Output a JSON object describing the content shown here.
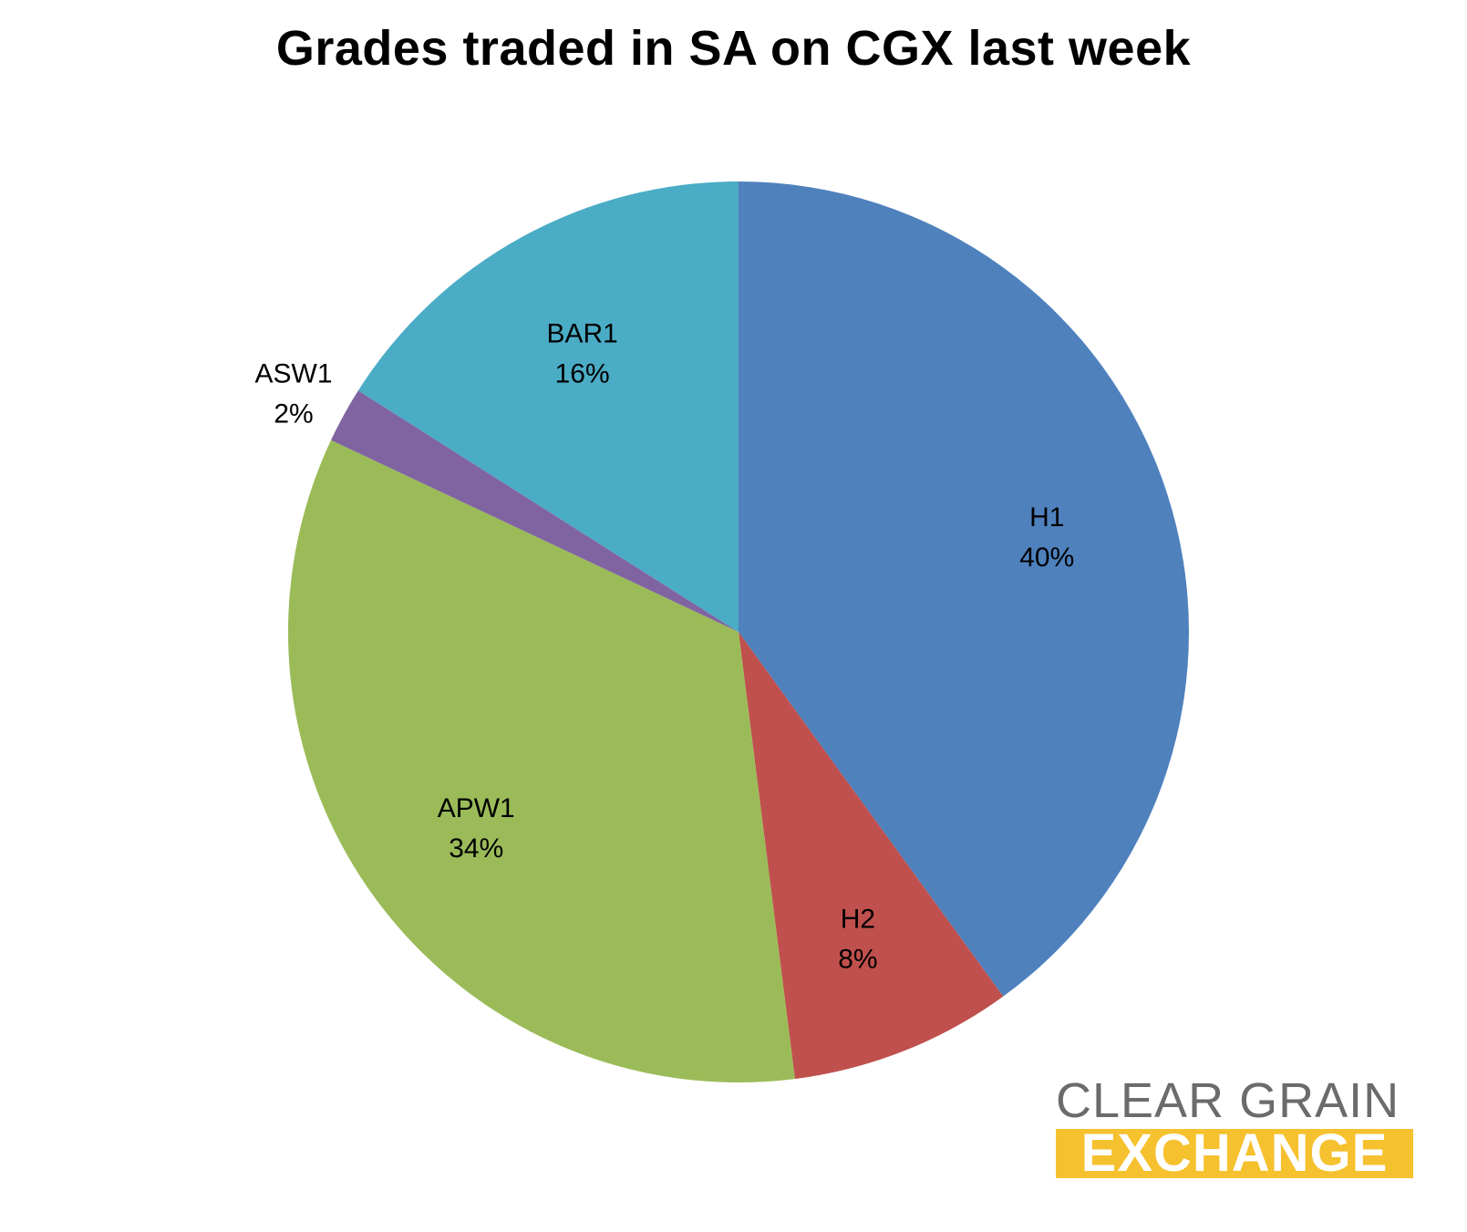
{
  "chart_data": {
    "type": "pie",
    "title": "Grades traded in SA on CGX last week",
    "slices": [
      {
        "label": "H1",
        "value": 40,
        "value_label": "40%",
        "color": "#4f81bd"
      },
      {
        "label": "H2",
        "value": 8,
        "value_label": "8%",
        "color": "#c0504d"
      },
      {
        "label": "APW1",
        "value": 34,
        "value_label": "34%",
        "color": "#9bbb59"
      },
      {
        "label": "ASW1",
        "value": 2,
        "value_label": "2%",
        "color": "#8064a2"
      },
      {
        "label": "BAR1",
        "value": 16,
        "value_label": "16%",
        "color": "#4bacc6"
      }
    ],
    "start_angle_deg": 0,
    "direction": "clockwise"
  },
  "logo": {
    "line1": "CLEAR GRAIN",
    "line2": "EXCHANGE",
    "text_color": "#6b6b6b",
    "accent_color": "#f6c12e"
  }
}
